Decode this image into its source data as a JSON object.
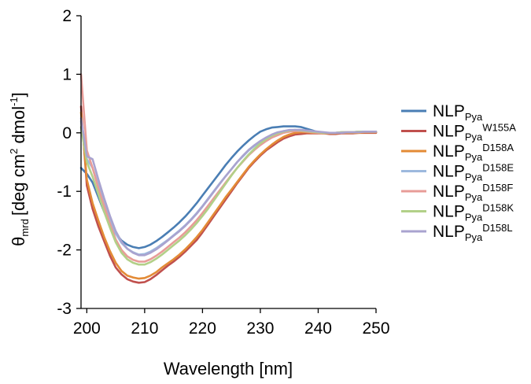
{
  "chart_data": {
    "type": "line",
    "xlabel": "Wavelength [nm]",
    "ylabel": {
      "symbol": "θ",
      "subscript": "mrd",
      "bracket_text": "[deg cm",
      "sup1": "2",
      "mid_text": " dmol",
      "sup2": "-1",
      "end_text": "]"
    },
    "xlim": [
      199,
      250
    ],
    "ylim": [
      -3,
      2
    ],
    "xticks": [
      200,
      210,
      220,
      230,
      240,
      250
    ],
    "yticks": [
      -3,
      -2,
      -1,
      0,
      1,
      2
    ],
    "grid": false,
    "legend_position": "right",
    "series": [
      {
        "base": "NLP",
        "sub": "Pya",
        "sup": "",
        "color": "#4a7eb4",
        "x": [
          199,
          200,
          201,
          202,
          203,
          204,
          205,
          206,
          207,
          208,
          209,
          210,
          211,
          212,
          213,
          214,
          215,
          216,
          217,
          218,
          219,
          220,
          221,
          222,
          223,
          224,
          225,
          226,
          227,
          228,
          229,
          230,
          231,
          232,
          233,
          234,
          235,
          236,
          237,
          238,
          239,
          240,
          241,
          242,
          243,
          244,
          245,
          246,
          247,
          248,
          249,
          250
        ],
        "y": [
          -0.6,
          -0.7,
          -0.85,
          -1.1,
          -1.35,
          -1.55,
          -1.72,
          -1.84,
          -1.91,
          -1.95,
          -1.97,
          -1.95,
          -1.91,
          -1.85,
          -1.78,
          -1.7,
          -1.62,
          -1.53,
          -1.43,
          -1.32,
          -1.2,
          -1.07,
          -0.94,
          -0.81,
          -0.68,
          -0.55,
          -0.43,
          -0.32,
          -0.22,
          -0.13,
          -0.05,
          0.02,
          0.06,
          0.09,
          0.1,
          0.11,
          0.11,
          0.11,
          0.1,
          0.07,
          0.04,
          0.01,
          0.0,
          -0.01,
          -0.01,
          0.0,
          0.0,
          0.0,
          0.01,
          0.01,
          0.01,
          0.01
        ]
      },
      {
        "base": "NLP",
        "sub": "Pya",
        "sup": "W155A",
        "color": "#c0504d",
        "x": [
          199,
          200,
          201,
          202,
          203,
          204,
          205,
          206,
          207,
          208,
          209,
          210,
          211,
          212,
          213,
          214,
          215,
          216,
          217,
          218,
          219,
          220,
          221,
          222,
          223,
          224,
          225,
          226,
          227,
          228,
          229,
          230,
          231,
          232,
          233,
          234,
          235,
          236,
          237,
          238,
          239,
          240,
          241,
          242,
          243,
          244,
          245,
          246,
          247,
          248,
          249,
          250
        ],
        "y": [
          0.45,
          -0.9,
          -1.3,
          -1.6,
          -1.85,
          -2.1,
          -2.3,
          -2.42,
          -2.5,
          -2.54,
          -2.56,
          -2.55,
          -2.5,
          -2.43,
          -2.35,
          -2.27,
          -2.2,
          -2.12,
          -2.03,
          -1.93,
          -1.83,
          -1.7,
          -1.56,
          -1.42,
          -1.28,
          -1.14,
          -1.0,
          -0.86,
          -0.73,
          -0.6,
          -0.49,
          -0.39,
          -0.3,
          -0.23,
          -0.16,
          -0.1,
          -0.06,
          -0.03,
          -0.02,
          -0.01,
          -0.01,
          -0.01,
          -0.01,
          -0.02,
          -0.02,
          -0.01,
          -0.01,
          -0.01,
          0.0,
          0.0,
          0.0,
          0.0
        ]
      },
      {
        "base": "NLP",
        "sub": "Pya",
        "sup": "D158A",
        "color": "#e38b36",
        "x": [
          199,
          200,
          201,
          202,
          203,
          204,
          205,
          206,
          207,
          208,
          209,
          210,
          211,
          212,
          213,
          214,
          215,
          216,
          217,
          218,
          219,
          220,
          221,
          222,
          223,
          224,
          225,
          226,
          227,
          228,
          229,
          230,
          231,
          232,
          233,
          234,
          235,
          236,
          237,
          238,
          239,
          240,
          241,
          242,
          243,
          244,
          245,
          246,
          247,
          248,
          249,
          250
        ],
        "y": [
          0.35,
          -0.8,
          -1.2,
          -1.5,
          -1.78,
          -2.02,
          -2.22,
          -2.36,
          -2.44,
          -2.47,
          -2.49,
          -2.48,
          -2.44,
          -2.38,
          -2.3,
          -2.23,
          -2.16,
          -2.08,
          -1.99,
          -1.89,
          -1.78,
          -1.66,
          -1.52,
          -1.38,
          -1.24,
          -1.1,
          -0.97,
          -0.84,
          -0.71,
          -0.58,
          -0.47,
          -0.37,
          -0.28,
          -0.2,
          -0.13,
          -0.07,
          -0.03,
          0.0,
          0.01,
          0.01,
          0.0,
          0.0,
          -0.01,
          -0.01,
          -0.01,
          0.0,
          0.0,
          0.0,
          0.0,
          0.01,
          0.01,
          0.01
        ]
      },
      {
        "base": "NLP",
        "sub": "Pya",
        "sup": "D158E",
        "color": "#9db9de",
        "x": [
          199,
          200,
          201,
          202,
          203,
          204,
          205,
          206,
          207,
          208,
          209,
          210,
          211,
          212,
          213,
          214,
          215,
          216,
          217,
          218,
          219,
          220,
          221,
          222,
          223,
          224,
          225,
          226,
          227,
          228,
          229,
          230,
          231,
          232,
          233,
          234,
          235,
          236,
          237,
          238,
          239,
          240,
          241,
          242,
          243,
          244,
          245,
          246,
          247,
          248,
          249,
          250
        ],
        "y": [
          0.2,
          -0.45,
          -0.6,
          -0.9,
          -1.2,
          -1.48,
          -1.72,
          -1.88,
          -1.98,
          -2.04,
          -2.08,
          -2.07,
          -2.03,
          -1.97,
          -1.9,
          -1.83,
          -1.75,
          -1.67,
          -1.58,
          -1.48,
          -1.37,
          -1.25,
          -1.12,
          -0.99,
          -0.86,
          -0.74,
          -0.62,
          -0.5,
          -0.4,
          -0.3,
          -0.22,
          -0.15,
          -0.09,
          -0.04,
          0.0,
          0.03,
          0.04,
          0.05,
          0.04,
          0.03,
          0.02,
          0.01,
          0.0,
          0.0,
          0.0,
          0.01,
          0.01,
          0.01,
          0.02,
          0.02,
          0.02,
          0.02
        ]
      },
      {
        "base": "NLP",
        "sub": "Pya",
        "sup": "D158F",
        "color": "#e89c98",
        "x": [
          199,
          200,
          201,
          202,
          203,
          204,
          205,
          206,
          207,
          208,
          209,
          210,
          211,
          212,
          213,
          214,
          215,
          216,
          217,
          218,
          219,
          220,
          221,
          222,
          223,
          224,
          225,
          226,
          227,
          228,
          229,
          230,
          231,
          232,
          233,
          234,
          235,
          236,
          237,
          238,
          239,
          240,
          241,
          242,
          243,
          244,
          245,
          246,
          247,
          248,
          249,
          250
        ],
        "y": [
          1.0,
          -0.3,
          -0.6,
          -0.95,
          -1.25,
          -1.55,
          -1.82,
          -2.0,
          -2.11,
          -2.17,
          -2.2,
          -2.2,
          -2.16,
          -2.1,
          -2.03,
          -1.95,
          -1.87,
          -1.79,
          -1.7,
          -1.6,
          -1.49,
          -1.37,
          -1.24,
          -1.11,
          -0.98,
          -0.85,
          -0.72,
          -0.6,
          -0.49,
          -0.38,
          -0.29,
          -0.21,
          -0.14,
          -0.08,
          -0.04,
          0.0,
          0.02,
          0.03,
          0.03,
          0.02,
          0.01,
          0.0,
          0.0,
          0.0,
          0.0,
          0.01,
          0.01,
          0.01,
          0.02,
          0.02,
          0.02,
          0.02
        ]
      },
      {
        "base": "NLP",
        "sub": "Pya",
        "sup": "D158K",
        "color": "#b2d088",
        "x": [
          199,
          200,
          201,
          202,
          203,
          204,
          205,
          206,
          207,
          208,
          209,
          210,
          211,
          212,
          213,
          214,
          215,
          216,
          217,
          218,
          219,
          220,
          221,
          222,
          223,
          224,
          225,
          226,
          227,
          228,
          229,
          230,
          231,
          232,
          233,
          234,
          235,
          236,
          237,
          238,
          239,
          240,
          241,
          242,
          243,
          244,
          245,
          246,
          247,
          248,
          249,
          250
        ],
        "y": [
          0.1,
          -0.5,
          -0.75,
          -1.05,
          -1.35,
          -1.62,
          -1.87,
          -2.05,
          -2.16,
          -2.22,
          -2.25,
          -2.25,
          -2.21,
          -2.15,
          -2.08,
          -2.0,
          -1.92,
          -1.84,
          -1.75,
          -1.65,
          -1.54,
          -1.42,
          -1.29,
          -1.15,
          -1.01,
          -0.87,
          -0.73,
          -0.6,
          -0.48,
          -0.37,
          -0.27,
          -0.18,
          -0.11,
          -0.05,
          -0.01,
          0.02,
          0.04,
          0.05,
          0.04,
          0.03,
          0.02,
          0.01,
          0.0,
          0.0,
          0.0,
          0.01,
          0.01,
          0.01,
          0.02,
          0.02,
          0.02,
          0.02
        ]
      },
      {
        "base": "NLP",
        "sub": "Pya",
        "sup": "D158L",
        "color": "#a9a3cf",
        "x": [
          199,
          200,
          201,
          202,
          203,
          204,
          205,
          206,
          207,
          208,
          209,
          210,
          211,
          212,
          213,
          214,
          215,
          216,
          217,
          218,
          219,
          220,
          221,
          222,
          223,
          224,
          225,
          226,
          227,
          228,
          229,
          230,
          231,
          232,
          233,
          234,
          235,
          236,
          237,
          238,
          239,
          240,
          241,
          242,
          243,
          244,
          245,
          246,
          247,
          248,
          249,
          250
        ],
        "y": [
          0.25,
          -0.4,
          -0.45,
          -0.8,
          -1.12,
          -1.42,
          -1.68,
          -1.86,
          -1.98,
          -2.05,
          -2.09,
          -2.09,
          -2.05,
          -1.99,
          -1.92,
          -1.84,
          -1.76,
          -1.68,
          -1.59,
          -1.49,
          -1.38,
          -1.26,
          -1.13,
          -1.0,
          -0.87,
          -0.74,
          -0.62,
          -0.5,
          -0.39,
          -0.29,
          -0.21,
          -0.14,
          -0.08,
          -0.03,
          0.01,
          0.03,
          0.05,
          0.05,
          0.05,
          0.04,
          0.03,
          0.02,
          0.01,
          0.0,
          0.0,
          0.0,
          0.01,
          0.01,
          0.01,
          0.02,
          0.02,
          0.02
        ]
      }
    ]
  }
}
